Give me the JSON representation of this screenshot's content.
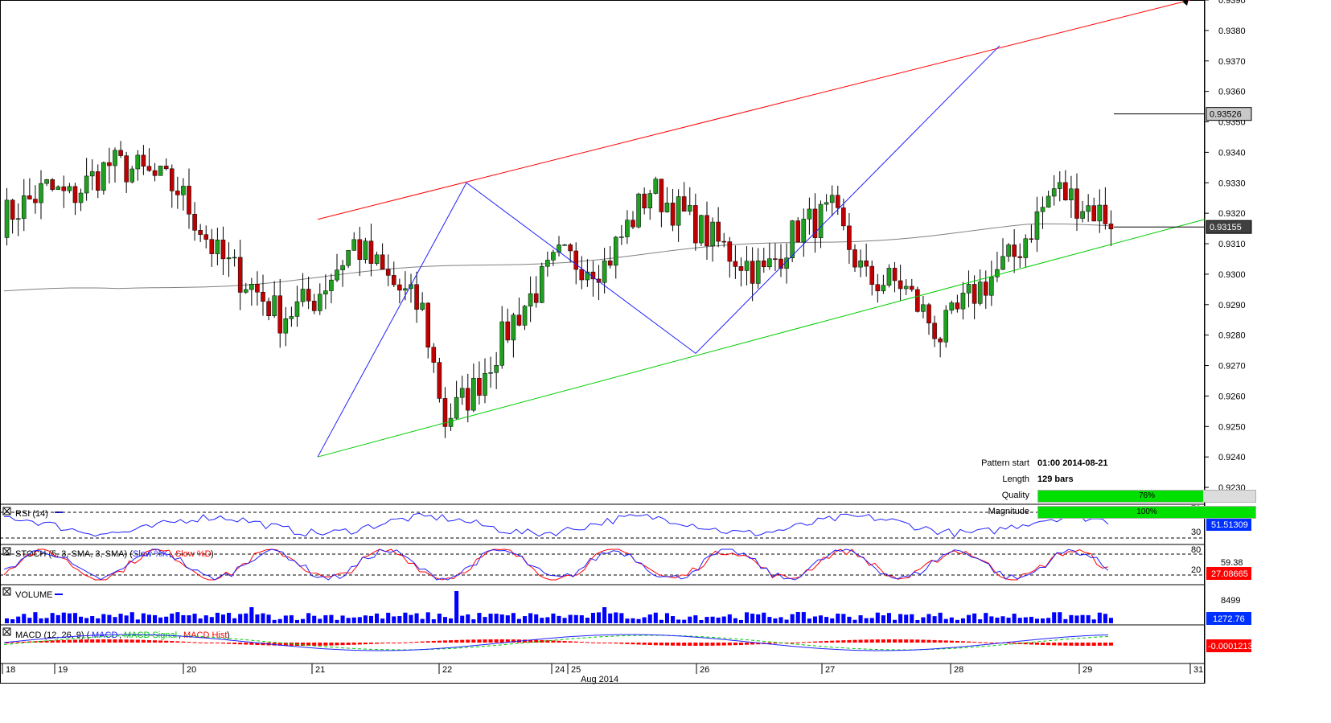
{
  "price_axis": {
    "ticks": [
      "0.9390",
      "0.9380",
      "0.9370",
      "0.9360",
      "0.9350",
      "0.9340",
      "0.9330",
      "0.9320",
      "0.9310",
      "0.9300",
      "0.9290",
      "0.9280",
      "0.9270",
      "0.9260",
      "0.9250",
      "0.9240",
      "0.9230"
    ],
    "current_label": "0.93526",
    "ma_label": "0.93155"
  },
  "time_axis": {
    "day_labels": [
      "18",
      "19",
      "20",
      "21",
      "22",
      "24",
      "25",
      "26",
      "27",
      "28",
      "29",
      "31"
    ],
    "month_label": "Aug 2014"
  },
  "pattern_info": {
    "start_label": "Pattern start",
    "start_value": "01:00 2014-08-21",
    "length_label": "Length",
    "length_value": "129 bars",
    "quality_label": "Quality",
    "quality_text": "76%",
    "quality_pct": 76,
    "magnitude_label": "Magnitude",
    "magnitude_text": "100%",
    "magnitude_pct": 100
  },
  "panels": {
    "rsi": {
      "title": "RSI (14)",
      "level_hi": "70",
      "level_lo": "30",
      "value": "51.51309"
    },
    "stoch": {
      "title": "STOCH (5, 3, SMA, 3, SMA)",
      "k_label": "Slow %K",
      "d_label": "Slow %D",
      "level_hi": "80",
      "level_mid": "59.38",
      "level_lo": "20",
      "value": "27.08665"
    },
    "volume": {
      "title": "VOLUME",
      "scale": "8499",
      "value": "1272.76"
    },
    "macd": {
      "title": "MACD (12, 26, 9)",
      "l1": "MACD",
      "l2": "MACD Signal",
      "l3": "MACD Hist",
      "value": "-0.0001213"
    }
  },
  "colors": {
    "bull": "#20a020",
    "bear": "#c00000",
    "resistance": "#ff0000",
    "support": "#00cc00",
    "zigzag": "#2020ff",
    "ma": "#808080",
    "rsi": "#2020ff",
    "stoch_k": "#2020ff",
    "stoch_d": "#ff0000",
    "volume": "#0000ff",
    "macd": "#2020ff",
    "macd_signal": "#00cc00",
    "macd_hist": "#ff0000",
    "value_box": "#0030ff",
    "neg_box": "#ff0000"
  },
  "chart_data": {
    "type": "candlestick",
    "symbol_pair": "",
    "ylim": [
      0.9225,
      0.939
    ],
    "bars": 195,
    "pattern": {
      "resistance_line": [
        [
          0.9318,
          0.939
        ]
      ],
      "support_line": [
        [
          0.924,
          0.9318
        ]
      ],
      "zigzag_points": [
        0.924,
        0.933,
        0.9274,
        0.9375
      ]
    },
    "key_prices": {
      "last": 0.93526,
      "ma": 0.93155
    },
    "anchors": [
      {
        "bar": 0,
        "price": 0.9318
      },
      {
        "bar": 8,
        "price": 0.9328
      },
      {
        "bar": 12,
        "price": 0.9325
      },
      {
        "bar": 19,
        "price": 0.9336
      },
      {
        "bar": 24,
        "price": 0.9334
      },
      {
        "bar": 31,
        "price": 0.9328
      },
      {
        "bar": 38,
        "price": 0.9306
      },
      {
        "bar": 44,
        "price": 0.9296
      },
      {
        "bar": 49,
        "price": 0.9286
      },
      {
        "bar": 55,
        "price": 0.9292
      },
      {
        "bar": 62,
        "price": 0.931
      },
      {
        "bar": 68,
        "price": 0.9298
      },
      {
        "bar": 74,
        "price": 0.9288
      },
      {
        "bar": 78,
        "price": 0.9252
      },
      {
        "bar": 83,
        "price": 0.9262
      },
      {
        "bar": 90,
        "price": 0.9285
      },
      {
        "bar": 98,
        "price": 0.9305
      },
      {
        "bar": 106,
        "price": 0.9303
      },
      {
        "bar": 114,
        "price": 0.9328
      },
      {
        "bar": 122,
        "price": 0.9316
      },
      {
        "bar": 128,
        "price": 0.9307
      },
      {
        "bar": 134,
        "price": 0.93
      },
      {
        "bar": 140,
        "price": 0.9315
      },
      {
        "bar": 146,
        "price": 0.932
      },
      {
        "bar": 152,
        "price": 0.9298
      },
      {
        "bar": 158,
        "price": 0.9297
      },
      {
        "bar": 165,
        "price": 0.928
      },
      {
        "bar": 171,
        "price": 0.9294
      },
      {
        "bar": 178,
        "price": 0.9306
      },
      {
        "bar": 185,
        "price": 0.9328
      },
      {
        "bar": 195,
        "price": 0.9318
      }
    ]
  }
}
